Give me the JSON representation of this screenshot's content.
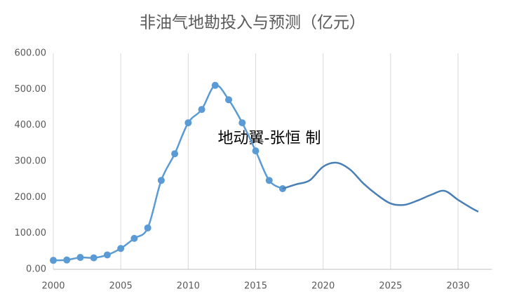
{
  "chart_data": {
    "type": "line",
    "title": "非油气地勘投入与预测（亿元）",
    "annotation": "地动翼-张恒 制",
    "series": [
      {
        "color": "#5b9bd5",
        "markers": true,
        "x": [
          2000,
          2001,
          2002,
          2003,
          2004,
          2005,
          2006,
          2007,
          2008,
          2009,
          2010,
          2011,
          2012,
          2013,
          2014,
          2015,
          2016,
          2017
        ],
        "values": [
          25,
          26,
          33,
          32,
          40,
          58,
          86,
          115,
          247,
          321,
          407,
          444,
          511,
          471,
          407,
          329,
          247,
          224
        ]
      },
      {
        "color": "#4a7fb5",
        "markers": false,
        "x": [
          2017,
          2018,
          2019,
          2020,
          2021,
          2022,
          2023,
          2024,
          2025,
          2026,
          2027,
          2028,
          2029,
          2030,
          2031,
          2031.5
        ],
        "values": [
          224,
          236,
          247,
          285,
          296,
          277,
          238,
          207,
          183,
          179,
          191,
          207,
          218,
          193,
          170,
          160
        ]
      }
    ],
    "xlim": [
      2000,
      2032
    ],
    "xticks": [
      2000,
      2005,
      2010,
      2015,
      2020,
      2025,
      2030
    ],
    "ylim": [
      0,
      600
    ],
    "yticks": [
      {
        "value": 0,
        "label": "0.00"
      },
      {
        "value": 100,
        "label": "100.00"
      },
      {
        "value": 200,
        "label": "200.00"
      },
      {
        "value": 300,
        "label": "300.00"
      },
      {
        "value": 400,
        "label": "400.00"
      },
      {
        "value": 500,
        "label": "500.00"
      },
      {
        "value": 600,
        "label": "600.00"
      }
    ],
    "grid": "x",
    "smooth": true
  }
}
